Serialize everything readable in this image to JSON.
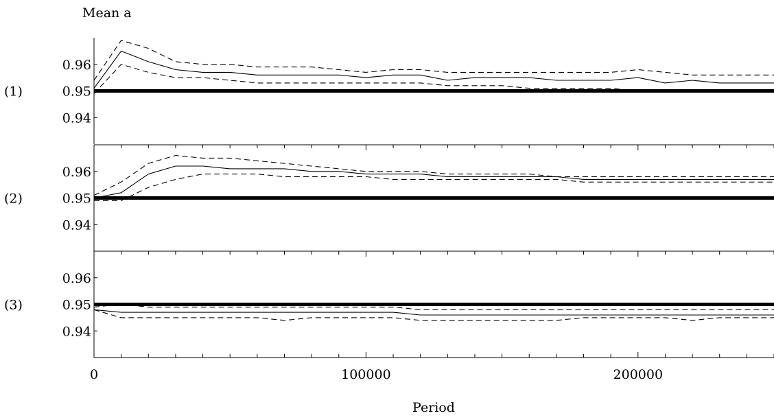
{
  "chart_data": {
    "type": "line",
    "title": "Mean a",
    "xlabel": "Period",
    "xlim": [
      0,
      250000
    ],
    "x_ticks": [
      0,
      100000,
      200000
    ],
    "x_tick_labels": [
      "0",
      "100000",
      "200000"
    ],
    "grid": false,
    "panels": [
      {
        "label": "(1)",
        "ylim": [
          0.93,
          0.97
        ],
        "y_ticks": [
          0.96,
          0.95,
          0.94
        ],
        "y_tick_labels": [
          "0.96",
          "0.95",
          "0.94"
        ],
        "reference_line": 0.95,
        "x": [
          0,
          10000,
          20000,
          30000,
          40000,
          50000,
          60000,
          70000,
          80000,
          90000,
          100000,
          110000,
          120000,
          130000,
          140000,
          150000,
          160000,
          170000,
          180000,
          190000,
          200000,
          210000,
          220000,
          230000,
          240000,
          250000
        ],
        "series": [
          {
            "style": "solid",
            "values": [
              0.951,
              0.965,
              0.961,
              0.958,
              0.957,
              0.957,
              0.956,
              0.956,
              0.956,
              0.956,
              0.955,
              0.956,
              0.956,
              0.954,
              0.955,
              0.955,
              0.955,
              0.954,
              0.954,
              0.954,
              0.955,
              0.953,
              0.954,
              0.953,
              0.953,
              0.953
            ]
          },
          {
            "style": "dashed",
            "values": [
              0.954,
              0.969,
              0.966,
              0.961,
              0.96,
              0.96,
              0.959,
              0.959,
              0.959,
              0.958,
              0.957,
              0.958,
              0.958,
              0.957,
              0.957,
              0.957,
              0.957,
              0.957,
              0.957,
              0.957,
              0.958,
              0.957,
              0.956,
              0.956,
              0.956,
              0.956
            ]
          },
          {
            "style": "dashed",
            "values": [
              0.949,
              0.96,
              0.957,
              0.955,
              0.955,
              0.954,
              0.953,
              0.953,
              0.953,
              0.953,
              0.953,
              0.953,
              0.953,
              0.952,
              0.952,
              0.952,
              0.951,
              0.951,
              0.951,
              0.951,
              0.95,
              0.95,
              0.95,
              0.95,
              0.95,
              0.95
            ]
          }
        ]
      },
      {
        "label": "(2)",
        "ylim": [
          0.93,
          0.97
        ],
        "y_ticks": [
          0.96,
          0.95,
          0.94
        ],
        "y_tick_labels": [
          "0.96",
          "0.95",
          "0.94"
        ],
        "reference_line": 0.95,
        "x": [
          0,
          10000,
          20000,
          30000,
          40000,
          50000,
          60000,
          70000,
          80000,
          90000,
          100000,
          110000,
          120000,
          130000,
          140000,
          150000,
          160000,
          170000,
          180000,
          190000,
          200000,
          210000,
          220000,
          230000,
          240000,
          250000
        ],
        "series": [
          {
            "style": "solid",
            "values": [
              0.95,
              0.952,
              0.959,
              0.962,
              0.962,
              0.961,
              0.961,
              0.961,
              0.96,
              0.96,
              0.959,
              0.959,
              0.959,
              0.958,
              0.958,
              0.958,
              0.958,
              0.958,
              0.957,
              0.957,
              0.957,
              0.957,
              0.957,
              0.957,
              0.957,
              0.957
            ]
          },
          {
            "style": "dashed",
            "values": [
              0.951,
              0.956,
              0.963,
              0.966,
              0.965,
              0.965,
              0.964,
              0.963,
              0.962,
              0.961,
              0.96,
              0.96,
              0.96,
              0.959,
              0.959,
              0.959,
              0.959,
              0.958,
              0.958,
              0.958,
              0.958,
              0.958,
              0.958,
              0.958,
              0.958,
              0.958
            ]
          },
          {
            "style": "dashed",
            "values": [
              0.949,
              0.949,
              0.954,
              0.957,
              0.959,
              0.959,
              0.959,
              0.958,
              0.958,
              0.958,
              0.958,
              0.957,
              0.957,
              0.957,
              0.957,
              0.957,
              0.957,
              0.957,
              0.956,
              0.956,
              0.956,
              0.956,
              0.956,
              0.956,
              0.956,
              0.956
            ]
          }
        ]
      },
      {
        "label": "(3)",
        "ylim": [
          0.93,
          0.97
        ],
        "y_ticks": [
          0.96,
          0.95,
          0.94
        ],
        "y_tick_labels": [
          "0.96",
          "0.95",
          "0.94"
        ],
        "reference_line": 0.95,
        "x": [
          0,
          10000,
          20000,
          30000,
          40000,
          50000,
          60000,
          70000,
          80000,
          90000,
          100000,
          110000,
          120000,
          130000,
          140000,
          150000,
          160000,
          170000,
          180000,
          190000,
          200000,
          210000,
          220000,
          230000,
          240000,
          250000
        ],
        "series": [
          {
            "style": "solid",
            "values": [
              0.948,
              0.947,
              0.947,
              0.947,
              0.947,
              0.947,
              0.947,
              0.947,
              0.947,
              0.947,
              0.947,
              0.947,
              0.946,
              0.946,
              0.946,
              0.946,
              0.946,
              0.946,
              0.946,
              0.946,
              0.946,
              0.946,
              0.946,
              0.946,
              0.946,
              0.946
            ]
          },
          {
            "style": "dashed",
            "values": [
              0.949,
              0.95,
              0.949,
              0.949,
              0.949,
              0.949,
              0.949,
              0.949,
              0.949,
              0.949,
              0.949,
              0.949,
              0.948,
              0.948,
              0.948,
              0.948,
              0.948,
              0.948,
              0.948,
              0.948,
              0.948,
              0.948,
              0.948,
              0.948,
              0.948,
              0.948
            ]
          },
          {
            "style": "dashed",
            "values": [
              0.948,
              0.945,
              0.945,
              0.945,
              0.945,
              0.945,
              0.945,
              0.944,
              0.945,
              0.945,
              0.945,
              0.945,
              0.944,
              0.944,
              0.944,
              0.944,
              0.944,
              0.944,
              0.945,
              0.945,
              0.945,
              0.945,
              0.944,
              0.945,
              0.945,
              0.945
            ]
          }
        ]
      }
    ]
  }
}
